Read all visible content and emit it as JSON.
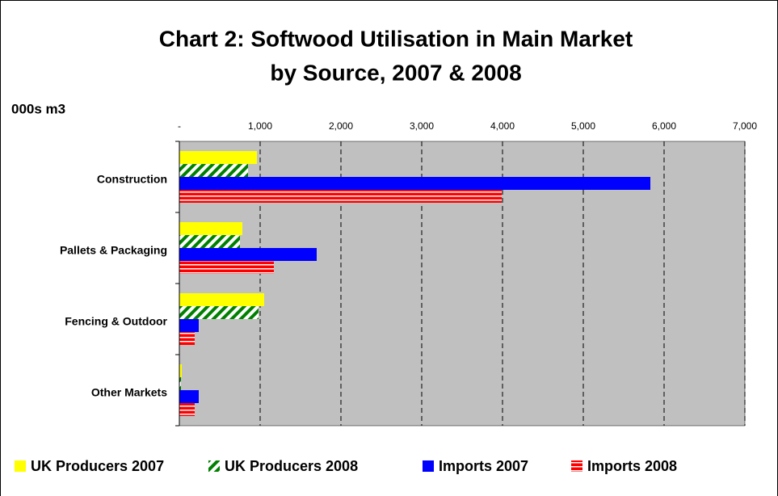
{
  "chart_data": {
    "type": "barh",
    "title": [
      "Chart 2: Softwood Utilisation in Main Market",
      "by Source, 2007 & 2008"
    ],
    "ylabel": "000s m3",
    "categories": [
      "Construction",
      "Pallets & Packaging",
      "Fencing & Outdoor",
      "Other Markets"
    ],
    "series": [
      {
        "name": "UK Producers 2007",
        "color": "#ffff00",
        "pattern": "solid",
        "values": [
          960,
          780,
          1050,
          30
        ]
      },
      {
        "name": "UK Producers 2008",
        "color": "#008000",
        "pattern": "diagonal",
        "values": [
          850,
          750,
          980,
          20
        ]
      },
      {
        "name": "Imports 2007",
        "color": "#0000ff",
        "pattern": "solid",
        "values": [
          5830,
          1700,
          240,
          240
        ]
      },
      {
        "name": "Imports 2008",
        "color": "#ff0000",
        "pattern": "horizontal",
        "values": [
          3990,
          1170,
          190,
          190
        ]
      }
    ],
    "xlim": [
      0,
      7000
    ],
    "xticks": [
      {
        "value": 0,
        "label": "-"
      },
      {
        "value": 1000,
        "label": "1,000"
      },
      {
        "value": 2000,
        "label": "2,000"
      },
      {
        "value": 3000,
        "label": "3,000"
      },
      {
        "value": 4000,
        "label": "4,000"
      },
      {
        "value": 5000,
        "label": "5,000"
      },
      {
        "value": 6000,
        "label": "6,000"
      },
      {
        "value": 7000,
        "label": "7,000"
      }
    ],
    "grid": true,
    "plot_background": "#c0c0c0",
    "legend": "bottom"
  }
}
